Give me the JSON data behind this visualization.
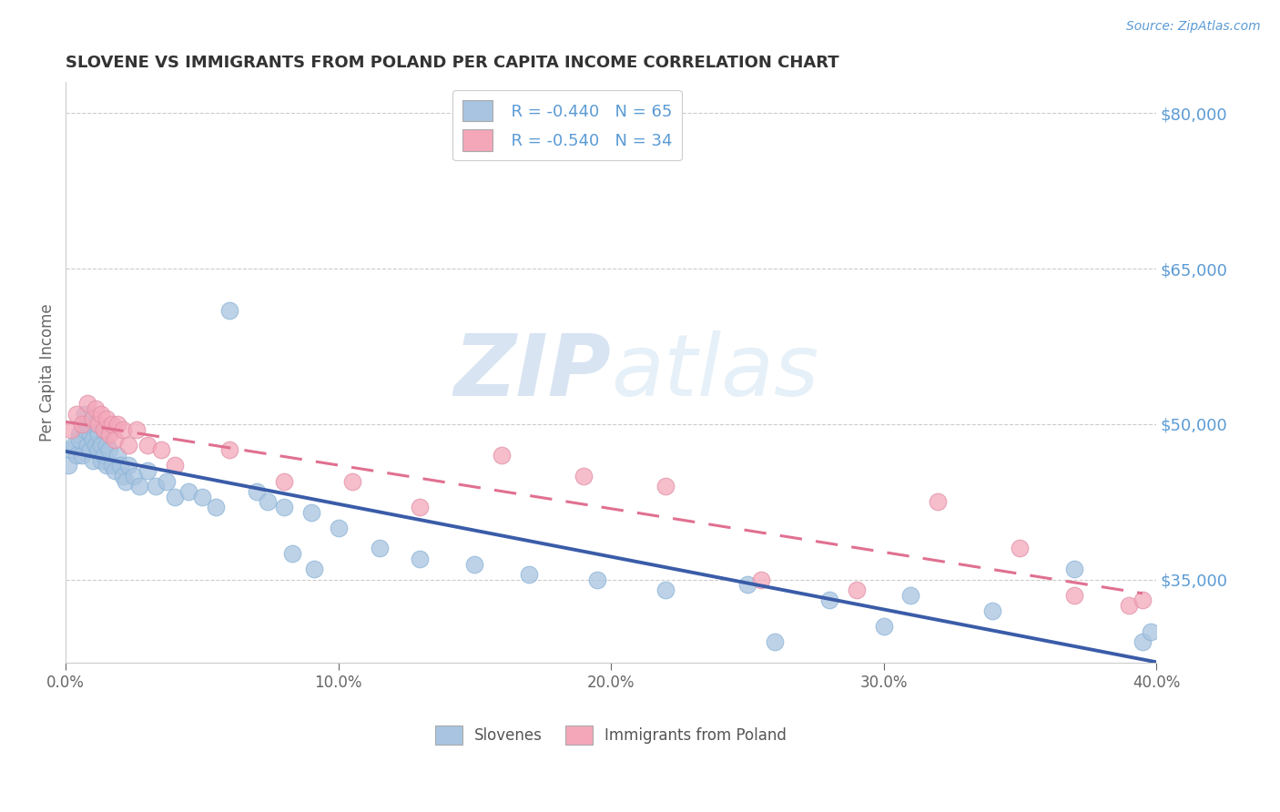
{
  "title": "SLOVENE VS IMMIGRANTS FROM POLAND PER CAPITA INCOME CORRELATION CHART",
  "source": "Source: ZipAtlas.com",
  "ylabel": "Per Capita Income",
  "xlim": [
    0.0,
    0.4
  ],
  "ylim": [
    27000,
    83000
  ],
  "yticks": [
    35000,
    50000,
    65000,
    80000
  ],
  "xticks": [
    0.0,
    0.1,
    0.2,
    0.3,
    0.4
  ],
  "xtick_labels": [
    "0.0%",
    "10.0%",
    "20.0%",
    "30.0%",
    "40.0%"
  ],
  "watermark_zip": "ZIP",
  "watermark_atlas": "atlas",
  "legend_r1": "R = -0.440",
  "legend_n1": "N = 65",
  "legend_r2": "R = -0.540",
  "legend_n2": "N = 34",
  "slovene_color": "#a8c4e0",
  "poland_color": "#f4a7b9",
  "slovene_line_color": "#3a5ca8",
  "poland_line_color": "#e07090",
  "right_axis_color": "#5b9bd5",
  "slovenes_x": [
    0.001,
    0.002,
    0.003,
    0.004,
    0.005,
    0.005,
    0.006,
    0.007,
    0.007,
    0.008,
    0.008,
    0.009,
    0.009,
    0.01,
    0.01,
    0.011,
    0.011,
    0.012,
    0.012,
    0.013,
    0.013,
    0.014,
    0.014,
    0.015,
    0.015,
    0.016,
    0.017,
    0.018,
    0.019,
    0.02,
    0.021,
    0.022,
    0.023,
    0.025,
    0.027,
    0.03,
    0.033,
    0.037,
    0.04,
    0.045,
    0.05,
    0.055,
    0.06,
    0.07,
    0.08,
    0.09,
    0.1,
    0.115,
    0.13,
    0.15,
    0.17,
    0.195,
    0.22,
    0.25,
    0.28,
    0.31,
    0.34,
    0.37,
    0.395,
    0.398,
    0.074,
    0.083,
    0.091,
    0.26,
    0.3
  ],
  "slovenes_y": [
    46000,
    47500,
    48000,
    47000,
    49000,
    48500,
    47000,
    49500,
    51000,
    50000,
    48000,
    49000,
    47500,
    48500,
    46500,
    50000,
    48000,
    47500,
    49000,
    48000,
    46500,
    47000,
    49500,
    48000,
    46000,
    47500,
    46000,
    45500,
    47000,
    46000,
    45000,
    44500,
    46000,
    45000,
    44000,
    45500,
    44000,
    44500,
    43000,
    43500,
    43000,
    42000,
    61000,
    43500,
    42000,
    41500,
    40000,
    38000,
    37000,
    36500,
    35500,
    35000,
    34000,
    34500,
    33000,
    33500,
    32000,
    36000,
    29000,
    30000,
    42500,
    37500,
    36000,
    29000,
    30500
  ],
  "poland_x": [
    0.002,
    0.004,
    0.006,
    0.008,
    0.01,
    0.011,
    0.012,
    0.013,
    0.014,
    0.015,
    0.016,
    0.017,
    0.018,
    0.019,
    0.021,
    0.023,
    0.026,
    0.03,
    0.035,
    0.04,
    0.06,
    0.08,
    0.105,
    0.13,
    0.16,
    0.19,
    0.22,
    0.255,
    0.29,
    0.32,
    0.35,
    0.37,
    0.39,
    0.395
  ],
  "poland_y": [
    49500,
    51000,
    50000,
    52000,
    50500,
    51500,
    50000,
    51000,
    49500,
    50500,
    49000,
    50000,
    48500,
    50000,
    49500,
    48000,
    49500,
    48000,
    47500,
    46000,
    47500,
    44500,
    44500,
    42000,
    47000,
    45000,
    44000,
    35000,
    34000,
    42500,
    38000,
    33500,
    32500,
    33000
  ]
}
